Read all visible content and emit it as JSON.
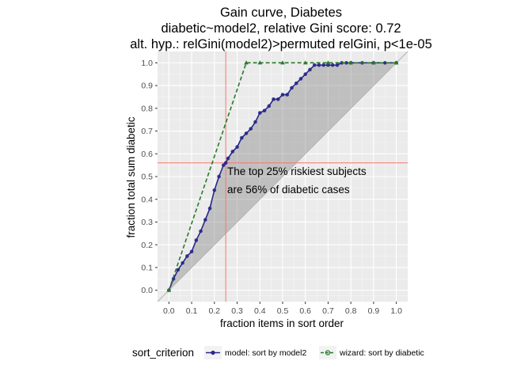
{
  "chart_data": {
    "type": "line",
    "title": [
      "Gain curve, Diabetes",
      "diabetic~model2, relative Gini score: 0.72",
      "alt. hyp.: relGini(model2)>permuted relGini, p<1e-05"
    ],
    "xlabel": "fraction items in sort order",
    "ylabel": "fraction total sum diabetic",
    "xlim": [
      -0.05,
      1.05
    ],
    "ylim": [
      -0.05,
      1.05
    ],
    "x_ticks": [
      0.0,
      0.1,
      0.2,
      0.3,
      0.4,
      0.5,
      0.6,
      0.7,
      0.8,
      0.9,
      1.0
    ],
    "x_tick_labels": [
      "0.0",
      "0.1",
      "0.2",
      "0.3",
      "0.4",
      "0.5",
      "0.6",
      "0.7",
      "0.8",
      "0.9",
      "1.0"
    ],
    "y_ticks": [
      0.0,
      0.1,
      0.2,
      0.3,
      0.4,
      0.5,
      0.6,
      0.7,
      0.8,
      0.9,
      1.0
    ],
    "y_tick_labels": [
      "0.0",
      "0.1",
      "0.2",
      "0.3",
      "0.4",
      "0.5",
      "0.6",
      "0.7",
      "0.8",
      "0.9",
      "1.0"
    ],
    "grid": true,
    "background": "#ebebeb",
    "reference_line": {
      "x": 0.25,
      "y": 0.56,
      "color": "#f8766d"
    },
    "annotation": [
      "The top 25% riskiest subjects",
      "are 56% of diabetic cases"
    ],
    "legend": {
      "position": "bottom",
      "title": "sort_criterion",
      "entries": [
        {
          "label": "model: sort by model2",
          "color": "#27278a",
          "linestyle": "solid",
          "marker": "circle"
        },
        {
          "label": "wizard: sort by diabetic",
          "color": "#2a7a2a",
          "linestyle": "dashed",
          "marker": "triangle"
        }
      ]
    },
    "diagonal": {
      "x": [
        0,
        1
      ],
      "y": [
        0,
        1
      ],
      "color": "#b3b3b3"
    },
    "series": [
      {
        "name": "model: sort by model2",
        "color": "#27278a",
        "x": [
          0.0,
          0.02,
          0.04,
          0.06,
          0.08,
          0.1,
          0.12,
          0.14,
          0.16,
          0.18,
          0.2,
          0.22,
          0.24,
          0.25,
          0.26,
          0.28,
          0.3,
          0.32,
          0.34,
          0.36,
          0.38,
          0.4,
          0.42,
          0.44,
          0.46,
          0.48,
          0.5,
          0.52,
          0.54,
          0.56,
          0.58,
          0.6,
          0.62,
          0.64,
          0.66,
          0.68,
          0.7,
          0.72,
          0.74,
          0.76,
          0.78,
          0.8,
          0.85,
          0.9,
          0.95,
          1.0
        ],
        "y": [
          0.0,
          0.05,
          0.09,
          0.12,
          0.15,
          0.17,
          0.22,
          0.26,
          0.31,
          0.36,
          0.44,
          0.5,
          0.55,
          0.56,
          0.58,
          0.61,
          0.63,
          0.67,
          0.69,
          0.71,
          0.74,
          0.78,
          0.79,
          0.81,
          0.84,
          0.84,
          0.86,
          0.86,
          0.89,
          0.91,
          0.93,
          0.95,
          0.97,
          0.99,
          0.99,
          0.99,
          0.99,
          0.99,
          0.99,
          1.0,
          1.0,
          1.0,
          1.0,
          1.0,
          1.0,
          1.0
        ]
      },
      {
        "name": "wizard: sort by diabetic",
        "color": "#2a7a2a",
        "x": [
          0.0,
          0.34,
          0.4,
          0.5,
          0.6,
          0.7,
          0.8,
          0.9,
          1.0
        ],
        "y": [
          0.0,
          1.0,
          1.0,
          1.0,
          1.0,
          1.0,
          1.0,
          1.0,
          1.0
        ]
      }
    ]
  }
}
